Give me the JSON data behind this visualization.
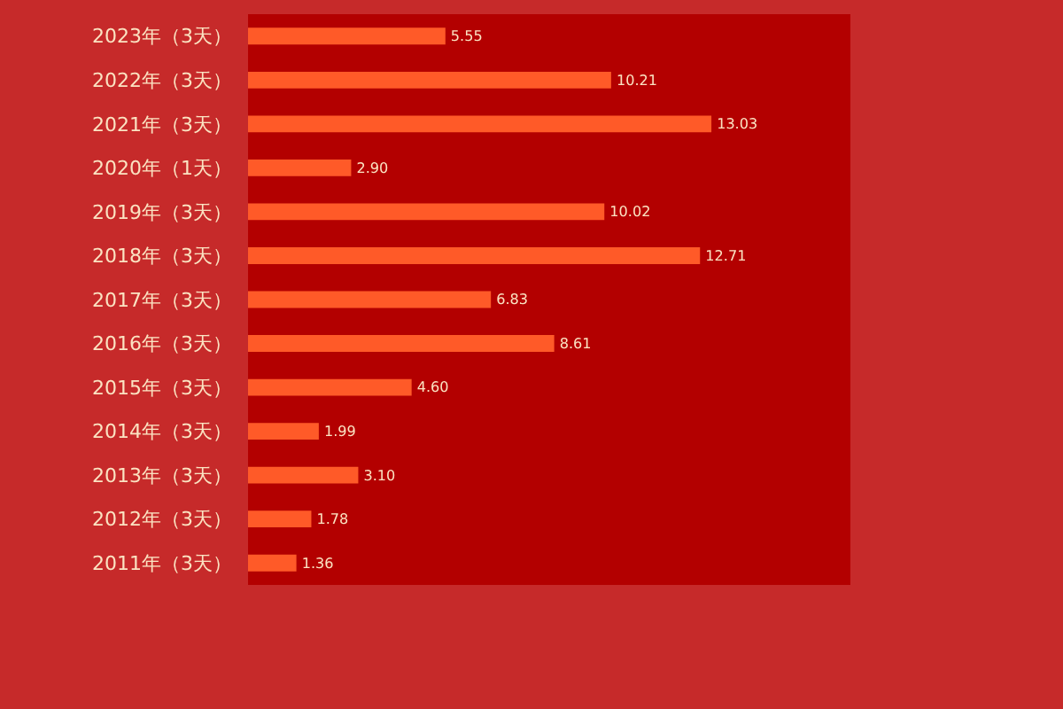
{
  "chart_data": {
    "type": "bar",
    "orientation": "horizontal",
    "categories": [
      "2023年（3天）",
      "2022年（3天）",
      "2021年（3天）",
      "2020年（1天）",
      "2019年（3天）",
      "2018年（3天）",
      "2017年（3天）",
      "2016年（3天）",
      "2015年（3天）",
      "2014年（3天）",
      "2013年（3天）",
      "2012年（3天）",
      "2011年（3天）"
    ],
    "values": [
      5.55,
      10.21,
      13.03,
      2.9,
      10.02,
      12.71,
      6.83,
      8.61,
      4.6,
      1.99,
      3.1,
      1.78,
      1.36
    ],
    "value_labels": [
      "5.55",
      "10.21",
      "13.03",
      "2.90",
      "10.02",
      "12.71",
      "6.83",
      "8.61",
      "4.60",
      "1.99",
      "3.10",
      "1.78",
      "1.36"
    ],
    "color": "#ff5a28"
  }
}
